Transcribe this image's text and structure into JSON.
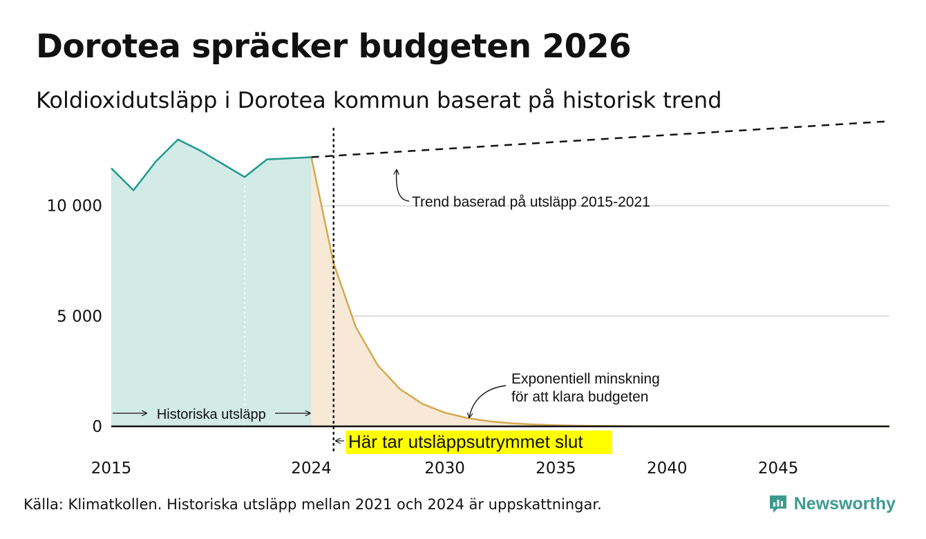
{
  "title": "Dorotea spräcker budgeten 2026",
  "subtitle": "Koldioxidutsläpp i Dorotea kommun baserat på historisk trend",
  "source": "Källa: Klimatkollen. Historiska utsläpp mellan 2021 och 2024 är uppskattningar.",
  "brand": {
    "name": "Newsworthy",
    "icon": "newsworthy-logo-icon"
  },
  "colors": {
    "historical_line": "#1d9a8c",
    "historical_fill": "#d2ebe6",
    "budget_line": "#d3a94f",
    "budget_fill": "#f8e9d6",
    "highlight": "#ffff00",
    "grid": "#dddddd"
  },
  "chart_data": {
    "type": "line",
    "xlim": [
      2015,
      2050
    ],
    "ylim": [
      0,
      14000
    ],
    "y_ticks": [
      {
        "value": 0,
        "label": "0"
      },
      {
        "value": 5000,
        "label": "5 000"
      },
      {
        "value": 10000,
        "label": "10 000"
      }
    ],
    "x_ticks": [
      {
        "value": 2015,
        "label": "2015"
      },
      {
        "value": 2024,
        "label": "2024"
      },
      {
        "value": 2030,
        "label": "2030"
      },
      {
        "value": 2035,
        "label": "2035"
      },
      {
        "value": 2040,
        "label": "2040"
      },
      {
        "value": 2045,
        "label": "2045"
      }
    ],
    "grid": true,
    "series": [
      {
        "type": "area",
        "x": [
          2015,
          2016,
          2017,
          2018,
          2019,
          2020,
          2021,
          2022,
          2023,
          2024
        ],
        "y": [
          11700,
          10700,
          12000,
          13000,
          12500,
          11900,
          11300,
          12100,
          12150,
          12200
        ]
      },
      {
        "type": "area",
        "x": [
          2024,
          2025,
          2026,
          2027,
          2028,
          2029,
          2030,
          2031,
          2032,
          2033,
          2034,
          2035,
          2036,
          2037,
          2038,
          2040,
          2042,
          2045,
          2050
        ],
        "y": [
          12200,
          7400,
          4500,
          2750,
          1680,
          1020,
          620,
          380,
          230,
          140,
          85,
          52,
          32,
          20,
          12,
          5,
          2,
          1,
          0
        ]
      },
      {
        "type": "line",
        "style": "dashed",
        "x": [
          2024,
          2050
        ],
        "y": [
          12200,
          13830
        ]
      }
    ],
    "vlines": [
      {
        "x": 2021,
        "style": "dotted-white"
      },
      {
        "x": 2025,
        "style": "dotted-black"
      }
    ],
    "annotations": [
      {
        "text": "Trend baserad på utsläpp 2015-2021"
      },
      {
        "text_lines": [
          "Exponentiell minskning",
          "för att klara budgeten"
        ]
      },
      {
        "text": "Historiska utsläpp"
      },
      {
        "text": "Här tar utsläppsutrymmet slut"
      }
    ]
  }
}
